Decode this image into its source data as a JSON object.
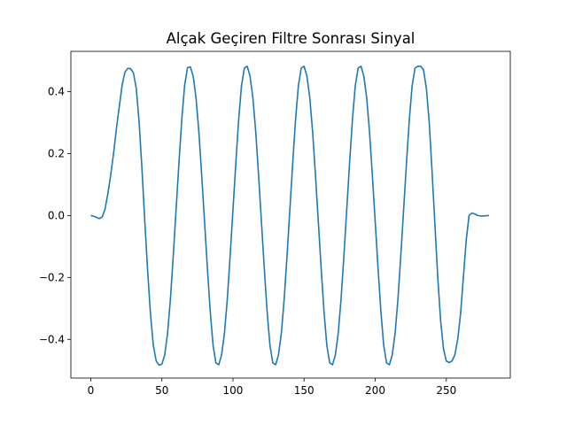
{
  "chart_data": {
    "type": "line",
    "title": "Alçak Geçiren Filtre Sonrası Sinyal",
    "xlabel": "",
    "ylabel": "",
    "xlim": [
      -14,
      295
    ],
    "ylim": [
      -0.525,
      0.53
    ],
    "grid": false,
    "x_ticks": [
      0,
      50,
      100,
      150,
      200,
      250
    ],
    "x_tick_labels": [
      "0",
      "50",
      "100",
      "150",
      "200",
      "250"
    ],
    "y_ticks": [
      -0.4,
      -0.2,
      0.0,
      0.2,
      0.4
    ],
    "y_tick_labels": [
      "−0.4",
      "−0.2",
      "0.0",
      "0.2",
      "0.4"
    ],
    "colors": {
      "line": "#1f77b4",
      "axes": "#000000",
      "background": "#ffffff"
    },
    "series": [
      {
        "name": "",
        "points": [
          [
            0,
            0.0
          ],
          [
            3,
            -0.004
          ],
          [
            6,
            -0.01
          ],
          [
            8,
            -0.005
          ],
          [
            10,
            0.02
          ],
          [
            12,
            0.07
          ],
          [
            14,
            0.13
          ],
          [
            16,
            0.2
          ],
          [
            18,
            0.28
          ],
          [
            20,
            0.35
          ],
          [
            22,
            0.42
          ],
          [
            24,
            0.463
          ],
          [
            26,
            0.475
          ],
          [
            28,
            0.474
          ],
          [
            30,
            0.46
          ],
          [
            32,
            0.41
          ],
          [
            34,
            0.3
          ],
          [
            36,
            0.15
          ],
          [
            38,
            -0.02
          ],
          [
            40,
            -0.18
          ],
          [
            42,
            -0.32
          ],
          [
            44,
            -0.42
          ],
          [
            46,
            -0.47
          ],
          [
            48,
            -0.483
          ],
          [
            50,
            -0.48
          ],
          [
            52,
            -0.45
          ],
          [
            54,
            -0.38
          ],
          [
            56,
            -0.27
          ],
          [
            58,
            -0.13
          ],
          [
            60,
            0.02
          ],
          [
            62,
            0.17
          ],
          [
            64,
            0.31
          ],
          [
            66,
            0.42
          ],
          [
            68,
            0.477
          ],
          [
            70,
            0.48
          ],
          [
            72,
            0.45
          ],
          [
            74,
            0.38
          ],
          [
            76,
            0.27
          ],
          [
            78,
            0.13
          ],
          [
            80,
            -0.02
          ],
          [
            82,
            -0.17
          ],
          [
            84,
            -0.31
          ],
          [
            86,
            -0.42
          ],
          [
            88,
            -0.476
          ],
          [
            90,
            -0.482
          ],
          [
            92,
            -0.45
          ],
          [
            94,
            -0.38
          ],
          [
            96,
            -0.27
          ],
          [
            98,
            -0.13
          ],
          [
            100,
            0.02
          ],
          [
            102,
            0.17
          ],
          [
            104,
            0.31
          ],
          [
            106,
            0.42
          ],
          [
            108,
            0.476
          ],
          [
            110,
            0.482
          ],
          [
            112,
            0.45
          ],
          [
            114,
            0.38
          ],
          [
            116,
            0.27
          ],
          [
            118,
            0.13
          ],
          [
            120,
            -0.02
          ],
          [
            122,
            -0.17
          ],
          [
            124,
            -0.31
          ],
          [
            126,
            -0.42
          ],
          [
            128,
            -0.476
          ],
          [
            130,
            -0.482
          ],
          [
            132,
            -0.45
          ],
          [
            134,
            -0.38
          ],
          [
            136,
            -0.27
          ],
          [
            138,
            -0.13
          ],
          [
            140,
            0.02
          ],
          [
            142,
            0.17
          ],
          [
            144,
            0.31
          ],
          [
            146,
            0.42
          ],
          [
            148,
            0.476
          ],
          [
            150,
            0.482
          ],
          [
            152,
            0.45
          ],
          [
            154,
            0.38
          ],
          [
            156,
            0.27
          ],
          [
            158,
            0.13
          ],
          [
            160,
            -0.02
          ],
          [
            162,
            -0.17
          ],
          [
            164,
            -0.31
          ],
          [
            166,
            -0.42
          ],
          [
            168,
            -0.476
          ],
          [
            170,
            -0.482
          ],
          [
            172,
            -0.45
          ],
          [
            174,
            -0.38
          ],
          [
            176,
            -0.27
          ],
          [
            178,
            -0.13
          ],
          [
            180,
            0.02
          ],
          [
            182,
            0.17
          ],
          [
            184,
            0.31
          ],
          [
            186,
            0.42
          ],
          [
            188,
            0.476
          ],
          [
            190,
            0.482
          ],
          [
            192,
            0.45
          ],
          [
            194,
            0.38
          ],
          [
            196,
            0.27
          ],
          [
            198,
            0.13
          ],
          [
            200,
            -0.02
          ],
          [
            202,
            -0.17
          ],
          [
            204,
            -0.31
          ],
          [
            206,
            -0.42
          ],
          [
            208,
            -0.476
          ],
          [
            210,
            -0.482
          ],
          [
            212,
            -0.45
          ],
          [
            214,
            -0.38
          ],
          [
            216,
            -0.27
          ],
          [
            218,
            -0.13
          ],
          [
            220,
            0.02
          ],
          [
            222,
            0.17
          ],
          [
            224,
            0.31
          ],
          [
            226,
            0.42
          ],
          [
            228,
            0.476
          ],
          [
            230,
            0.482
          ],
          [
            232,
            0.482
          ],
          [
            234,
            0.47
          ],
          [
            236,
            0.41
          ],
          [
            238,
            0.3
          ],
          [
            240,
            0.14
          ],
          [
            242,
            -0.03
          ],
          [
            244,
            -0.2
          ],
          [
            246,
            -0.34
          ],
          [
            248,
            -0.43
          ],
          [
            250,
            -0.47
          ],
          [
            252,
            -0.475
          ],
          [
            254,
            -0.47
          ],
          [
            256,
            -0.45
          ],
          [
            258,
            -0.4
          ],
          [
            260,
            -0.32
          ],
          [
            262,
            -0.2
          ],
          [
            264,
            -0.08
          ],
          [
            266,
            0.0
          ],
          [
            268,
            0.008
          ],
          [
            270,
            0.005
          ],
          [
            272,
            0.0
          ],
          [
            275,
            -0.002
          ],
          [
            280,
            0.0
          ]
        ]
      }
    ]
  }
}
